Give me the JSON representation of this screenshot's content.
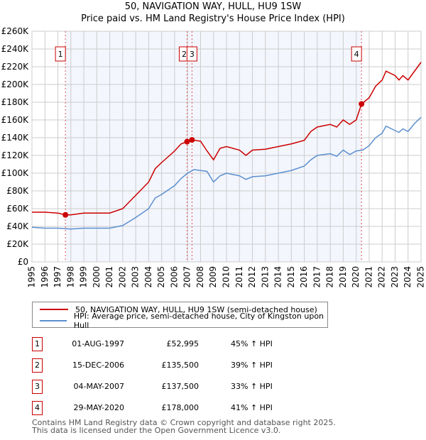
{
  "title_line1": "50, NAVIGATION WAY, HULL, HU9 1SW",
  "title_line2": "Price paid vs. HM Land Registry's House Price Index (HPI)",
  "chart_data": {
    "type": "line",
    "title": "50, NAVIGATION WAY, HULL, HU9 1SW — Price paid vs. HM Land Registry's House Price Index (HPI)",
    "xlim": [
      1995,
      2025
    ],
    "ylim": [
      0,
      260000
    ],
    "x_ticks": [
      "1995",
      "1996",
      "1997",
      "1998",
      "1999",
      "2000",
      "2001",
      "2002",
      "2003",
      "2004",
      "2005",
      "2006",
      "2007",
      "2008",
      "2009",
      "2010",
      "2011",
      "2012",
      "2013",
      "2014",
      "2015",
      "2016",
      "2017",
      "2018",
      "2019",
      "2020",
      "2021",
      "2022",
      "2023",
      "2024",
      "2025"
    ],
    "y_ticks": [
      {
        "value": 0,
        "label": "£0"
      },
      {
        "value": 20000,
        "label": "£20K"
      },
      {
        "value": 40000,
        "label": "£40K"
      },
      {
        "value": 60000,
        "label": "£60K"
      },
      {
        "value": 80000,
        "label": "£80K"
      },
      {
        "value": 100000,
        "label": "£100K"
      },
      {
        "value": 120000,
        "label": "£120K"
      },
      {
        "value": 140000,
        "label": "£140K"
      },
      {
        "value": 160000,
        "label": "£160K"
      },
      {
        "value": 180000,
        "label": "£180K"
      },
      {
        "value": 200000,
        "label": "£200K"
      },
      {
        "value": 220000,
        "label": "£220K"
      },
      {
        "value": 240000,
        "label": "£240K"
      },
      {
        "value": 260000,
        "label": "£260K"
      }
    ],
    "grid": true,
    "shaded_range": [
      1997.58,
      2020.41
    ],
    "series": [
      {
        "name": "50, NAVIGATION WAY, HULL, HU9 1SW (semi-detached house)",
        "color": "#cc0000",
        "x": [
          1995,
          1996,
          1997,
          1997.58,
          1998,
          1999,
          2000,
          2001,
          2002,
          2003,
          2004,
          2004.5,
          2005,
          2006,
          2006.5,
          2006.96,
          2007.34,
          2008,
          2008.5,
          2009,
          2009.5,
          2010,
          2011,
          2011.5,
          2012,
          2013,
          2014,
          2015,
          2016,
          2016.5,
          2017,
          2018,
          2018.5,
          2019,
          2019.5,
          2020,
          2020.41,
          2021,
          2021.5,
          2022,
          2022.3,
          2023,
          2023.3,
          2023.6,
          2024,
          2024.5,
          2025
        ],
        "y": [
          56000,
          56000,
          55000,
          52995,
          53000,
          55000,
          55000,
          55000,
          60000,
          75000,
          90000,
          105000,
          112000,
          125000,
          133000,
          135500,
          137500,
          136000,
          125000,
          115000,
          128000,
          130000,
          126000,
          120000,
          126000,
          127000,
          130000,
          133000,
          137000,
          147000,
          152000,
          155000,
          152000,
          160000,
          155000,
          160000,
          178000,
          185000,
          198000,
          205000,
          215000,
          210000,
          205000,
          210000,
          205000,
          215000,
          225000
        ]
      },
      {
        "name": "HPI: Average price, semi-detached house, City of Kingston upon Hull",
        "color": "#5b8fd0",
        "x": [
          1995,
          1996,
          1997,
          1998,
          1999,
          2000,
          2001,
          2002,
          2003,
          2004,
          2004.5,
          2005,
          2006,
          2006.5,
          2007,
          2007.5,
          2008,
          2008.5,
          2009,
          2009.5,
          2010,
          2011,
          2011.5,
          2012,
          2013,
          2014,
          2015,
          2016,
          2016.5,
          2017,
          2018,
          2018.5,
          2019,
          2019.5,
          2020,
          2020.5,
          2021,
          2021.5,
          2022,
          2022.3,
          2023,
          2023.3,
          2023.6,
          2024,
          2024.5,
          2025
        ],
        "y": [
          39000,
          38000,
          38000,
          37000,
          38000,
          38000,
          38000,
          41000,
          50000,
          60000,
          72000,
          76000,
          86000,
          94000,
          100000,
          104000,
          103000,
          102000,
          90000,
          97000,
          100000,
          97000,
          93000,
          96000,
          97000,
          100000,
          103000,
          108000,
          115000,
          120000,
          122000,
          119000,
          126000,
          121000,
          125000,
          126000,
          131000,
          140000,
          145000,
          153000,
          148000,
          146000,
          150000,
          147000,
          156000,
          163000
        ]
      }
    ],
    "annotations": [
      {
        "label": "1",
        "x": 1997.58,
        "y": 52995
      },
      {
        "label": "2",
        "x": 2006.96,
        "y": 135500
      },
      {
        "label": "3",
        "x": 2007.34,
        "y": 137500
      },
      {
        "label": "4",
        "x": 2020.41,
        "y": 178000
      }
    ]
  },
  "legend": {
    "property": "50, NAVIGATION WAY, HULL, HU9 1SW (semi-detached house)",
    "hpi": "HPI: Average price, semi-detached house, City of Kingston upon Hull"
  },
  "transactions": [
    {
      "num": "1",
      "date": "01-AUG-1997",
      "price": "£52,995",
      "hpi": "45% ↑ HPI"
    },
    {
      "num": "2",
      "date": "15-DEC-2006",
      "price": "£135,500",
      "hpi": "39% ↑ HPI"
    },
    {
      "num": "3",
      "date": "04-MAY-2007",
      "price": "£137,500",
      "hpi": "33% ↑ HPI"
    },
    {
      "num": "4",
      "date": "29-MAY-2020",
      "price": "£178,000",
      "hpi": "41% ↑ HPI"
    }
  ],
  "footer": {
    "line1": "Contains HM Land Registry data © Crown copyright and database right 2025.",
    "line2": "This data is licensed under the Open Government Licence v3.0."
  }
}
